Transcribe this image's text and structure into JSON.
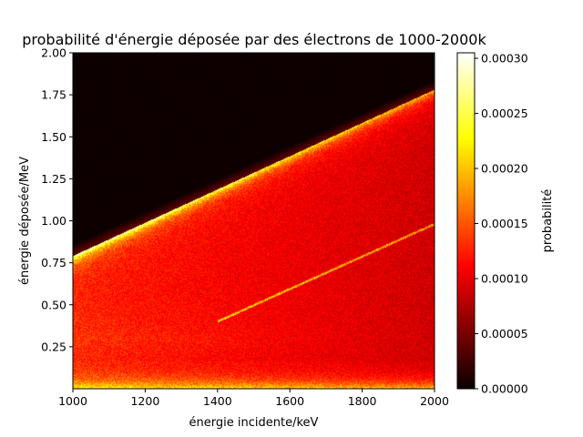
{
  "chart_data": {
    "type": "heatmap",
    "title": "probabilité d'énergie déposée par des électrons de 1000-2000k",
    "xlabel": "énergie incidente/keV",
    "ylabel": "énergie déposée/MeV",
    "xlim": [
      1000,
      2000
    ],
    "ylim": [
      0.0,
      2.0
    ],
    "x_ticks": [
      {
        "value": 1000,
        "label": "1000"
      },
      {
        "value": 1200,
        "label": "1200"
      },
      {
        "value": 1400,
        "label": "1400"
      },
      {
        "value": 1600,
        "label": "1600"
      },
      {
        "value": 1800,
        "label": "1800"
      },
      {
        "value": 2000,
        "label": "2000"
      }
    ],
    "y_ticks": [
      {
        "value": 0.25,
        "label": "0.25"
      },
      {
        "value": 0.5,
        "label": "0.50"
      },
      {
        "value": 0.75,
        "label": "0.75"
      },
      {
        "value": 1.0,
        "label": "1.00"
      },
      {
        "value": 1.25,
        "label": "1.25"
      },
      {
        "value": 1.5,
        "label": "1.50"
      },
      {
        "value": 1.75,
        "label": "1.75"
      },
      {
        "value": 2.0,
        "label": "2.00"
      }
    ],
    "colormap": "hot",
    "colorbar": {
      "label": "probabilité",
      "range": [
        0.0,
        0.000305
      ],
      "ticks": [
        {
          "value": 0.0,
          "label": "0.00000"
        },
        {
          "value": 5e-05,
          "label": "0.00005"
        },
        {
          "value": 0.0001,
          "label": "0.00010"
        },
        {
          "value": 0.00015,
          "label": "0.00015"
        },
        {
          "value": 0.0002,
          "label": "0.00020"
        },
        {
          "value": 0.00025,
          "label": "0.00025"
        },
        {
          "value": 0.0003,
          "label": "0.00030"
        }
      ]
    },
    "features": {
      "edge_line_MeV": {
        "x": [
          1000,
          2000
        ],
        "y": [
          0.79,
          1.78
        ]
      },
      "faint_upper_edge_MeV": {
        "x": [
          1000,
          2000
        ],
        "y": [
          0.86,
          1.84
        ]
      },
      "escape_line_MeV": {
        "x": [
          1400,
          2000
        ],
        "y": [
          0.4,
          0.98
        ]
      },
      "low_energy_peak_MeV": 0.06,
      "grid": false,
      "legend": "none"
    }
  }
}
